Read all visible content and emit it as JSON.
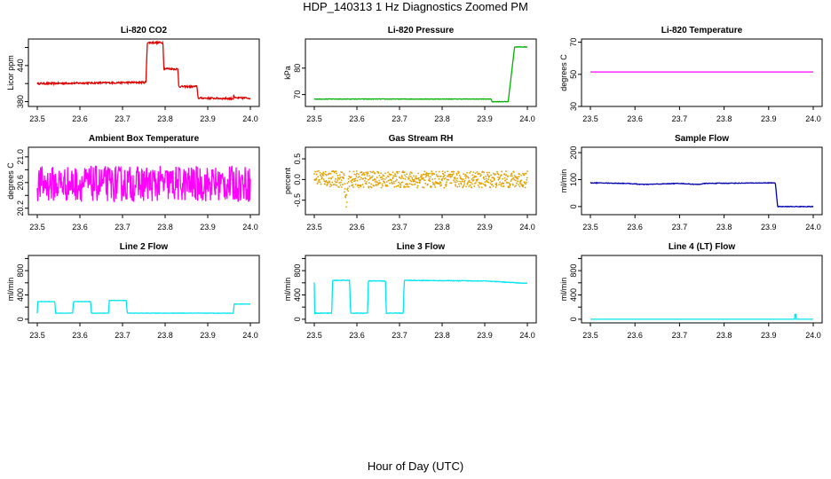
{
  "page": {
    "title": "HDP_140313  1 Hz Diagnostics Zoomed PM",
    "xlabel": "Hour of Day (UTC)"
  },
  "chart_data": [
    {
      "type": "line",
      "title": "Li-820 CO2",
      "xlabel": "",
      "ylabel": "Licor ppm",
      "color": "#e00000",
      "xlim": [
        23.5,
        24.0
      ],
      "ylim": [
        372,
        484
      ],
      "xticks": [
        23.5,
        23.6,
        23.7,
        23.8,
        23.9,
        24.0
      ],
      "yticks": [
        380,
        410,
        440,
        470
      ],
      "ytick_labels": [
        "380",
        "",
        "440",
        ""
      ],
      "series": [
        {
          "points": [
            [
              23.5,
              410
            ],
            [
              23.755,
              412
            ],
            [
              23.758,
              478
            ],
            [
              23.795,
              478
            ],
            [
              23.797,
              435
            ],
            [
              23.83,
              434
            ],
            [
              23.832,
              405
            ],
            [
              23.875,
              405
            ],
            [
              23.877,
              386
            ],
            [
              23.96,
              385
            ],
            [
              23.961,
              392
            ],
            [
              23.963,
              386
            ],
            [
              24.0,
              386
            ]
          ],
          "noise": 1.5
        }
      ]
    },
    {
      "type": "line",
      "title": "Li-820 Pressure",
      "xlabel": "",
      "ylabel": "kPa",
      "color": "#00b000",
      "xlim": [
        23.5,
        24.0
      ],
      "ylim": [
        65.5,
        91
      ],
      "xticks": [
        23.5,
        23.6,
        23.7,
        23.8,
        23.9,
        24.0
      ],
      "yticks": [
        70,
        80
      ],
      "ytick_labels": [
        "70",
        "80"
      ],
      "series": [
        {
          "points": [
            [
              23.5,
              68.3
            ],
            [
              23.915,
              68.3
            ],
            [
              23.917,
              67.3
            ],
            [
              23.955,
              67.3
            ],
            [
              23.97,
              88
            ],
            [
              24.0,
              88
            ]
          ],
          "noise": 0.1
        }
      ]
    },
    {
      "type": "line",
      "title": "Li-820 Temperature",
      "xlabel": "",
      "ylabel": "degrees C",
      "color": "#ff00ff",
      "xlim": [
        23.5,
        24.0
      ],
      "ylim": [
        30,
        72
      ],
      "xticks": [
        23.5,
        23.6,
        23.7,
        23.8,
        23.9,
        24.0
      ],
      "yticks": [
        30,
        50,
        70
      ],
      "ytick_labels": [
        "30",
        "50",
        "70"
      ],
      "series": [
        {
          "points": [
            [
              23.5,
              51.5
            ],
            [
              24.0,
              51.5
            ]
          ],
          "noise": 0
        }
      ]
    },
    {
      "type": "line",
      "title": "Ambient Box Temperature",
      "xlabel": "",
      "ylabel": "degrees C",
      "color": "#ff00ff",
      "xlim": [
        23.5,
        24.0
      ],
      "ylim": [
        20.1,
        21.15
      ],
      "xticks": [
        23.5,
        23.6,
        23.7,
        23.8,
        23.9,
        24.0
      ],
      "yticks": [
        20.2,
        20.4,
        20.6,
        20.8,
        21.0
      ],
      "ytick_labels": [
        "20.2",
        "",
        "20.6",
        "",
        "21.0"
      ],
      "series": [
        {
          "points": [
            [
              23.5,
              20.58
            ],
            [
              24.0,
              20.58
            ]
          ],
          "noise": 0.28
        }
      ]
    },
    {
      "type": "scatter",
      "title": "Gas Stream RH",
      "xlabel": "",
      "ylabel": "percent",
      "color": "#e0a000",
      "xlim": [
        23.5,
        24.0
      ],
      "ylim": [
        -0.85,
        0.78
      ],
      "xticks": [
        23.5,
        23.6,
        23.7,
        23.8,
        23.9,
        24.0
      ],
      "yticks": [
        -0.5,
        0.0,
        0.5
      ],
      "ytick_labels": [
        "-0.5",
        "0.0",
        "0.5"
      ],
      "series": [
        {
          "points": [
            [
              23.5,
              0.05
            ],
            [
              23.57,
              0.0
            ],
            [
              23.575,
              -0.65
            ],
            [
              23.58,
              0.0
            ],
            [
              24.0,
              0.0
            ]
          ],
          "noise": 0.2
        }
      ]
    },
    {
      "type": "line",
      "title": "Sample Flow",
      "xlabel": "",
      "ylabel": "ml/min",
      "color": "#0000b0",
      "xlim": [
        23.5,
        24.0
      ],
      "ylim": [
        -30,
        220
      ],
      "xticks": [
        23.5,
        23.6,
        23.7,
        23.8,
        23.9,
        24.0
      ],
      "yticks": [
        0,
        100,
        200
      ],
      "ytick_labels": [
        "0",
        "100",
        "200"
      ],
      "series": [
        {
          "points": [
            [
              23.5,
              88
            ],
            [
              23.58,
              86
            ],
            [
              23.62,
              82
            ],
            [
              23.7,
              86
            ],
            [
              23.74,
              82
            ],
            [
              23.76,
              86
            ],
            [
              23.915,
              88
            ],
            [
              23.92,
              0
            ],
            [
              24.0,
              0
            ]
          ],
          "noise": 1.2
        }
      ]
    },
    {
      "type": "line",
      "title": "Line 2 Flow",
      "xlabel": "",
      "ylabel": "ml/min",
      "color": "#00e5ee",
      "xlim": [
        23.5,
        24.0
      ],
      "ylim": [
        -60,
        1050
      ],
      "xticks": [
        23.5,
        23.6,
        23.7,
        23.8,
        23.9,
        24.0
      ],
      "yticks": [
        0,
        200,
        400,
        600,
        800,
        1000
      ],
      "ytick_labels": [
        "0",
        "",
        "400",
        "",
        "800",
        ""
      ],
      "series": [
        {
          "points": [
            [
              23.5,
              100
            ],
            [
              23.501,
              290
            ],
            [
              23.541,
              290
            ],
            [
              23.543,
              100
            ],
            [
              23.583,
              100
            ],
            [
              23.585,
              290
            ],
            [
              23.625,
              290
            ],
            [
              23.627,
              100
            ],
            [
              23.667,
              100
            ],
            [
              23.669,
              310
            ],
            [
              23.709,
              310
            ],
            [
              23.711,
              100
            ],
            [
              23.75,
              100
            ],
            [
              23.96,
              100
            ],
            [
              23.962,
              250
            ],
            [
              24.0,
              250
            ]
          ],
          "noise": 3
        }
      ]
    },
    {
      "type": "line",
      "title": "Line 3 Flow",
      "xlabel": "",
      "ylabel": "ml/min",
      "color": "#00e5ee",
      "xlim": [
        23.5,
        24.0
      ],
      "ylim": [
        -60,
        1050
      ],
      "xticks": [
        23.5,
        23.6,
        23.7,
        23.8,
        23.9,
        24.0
      ],
      "yticks": [
        0,
        200,
        400,
        600,
        800,
        1000
      ],
      "ytick_labels": [
        "0",
        "",
        "400",
        "",
        "800",
        ""
      ],
      "series": [
        {
          "points": [
            [
              23.5,
              600
            ],
            [
              23.501,
              100
            ],
            [
              23.541,
              100
            ],
            [
              23.543,
              640
            ],
            [
              23.583,
              640
            ],
            [
              23.585,
              100
            ],
            [
              23.625,
              100
            ],
            [
              23.627,
              630
            ],
            [
              23.667,
              630
            ],
            [
              23.669,
              100
            ],
            [
              23.709,
              100
            ],
            [
              23.711,
              640
            ],
            [
              23.9,
              630
            ],
            [
              23.95,
              610
            ],
            [
              24.0,
              590
            ]
          ],
          "noise": 5
        }
      ]
    },
    {
      "type": "line",
      "title": "Line 4 (LT) Flow",
      "xlabel": "",
      "ylabel": "ml/min",
      "color": "#00e5ee",
      "xlim": [
        23.5,
        24.0
      ],
      "ylim": [
        -60,
        1050
      ],
      "xticks": [
        23.5,
        23.6,
        23.7,
        23.8,
        23.9,
        24.0
      ],
      "yticks": [
        0,
        200,
        400,
        600,
        800,
        1000
      ],
      "ytick_labels": [
        "0",
        "",
        "400",
        "",
        "800",
        ""
      ],
      "series": [
        {
          "points": [
            [
              23.5,
              0
            ],
            [
              23.958,
              0
            ],
            [
              23.959,
              80
            ],
            [
              23.961,
              80
            ],
            [
              23.962,
              0
            ],
            [
              24.0,
              0
            ]
          ],
          "noise": 0
        }
      ]
    }
  ]
}
